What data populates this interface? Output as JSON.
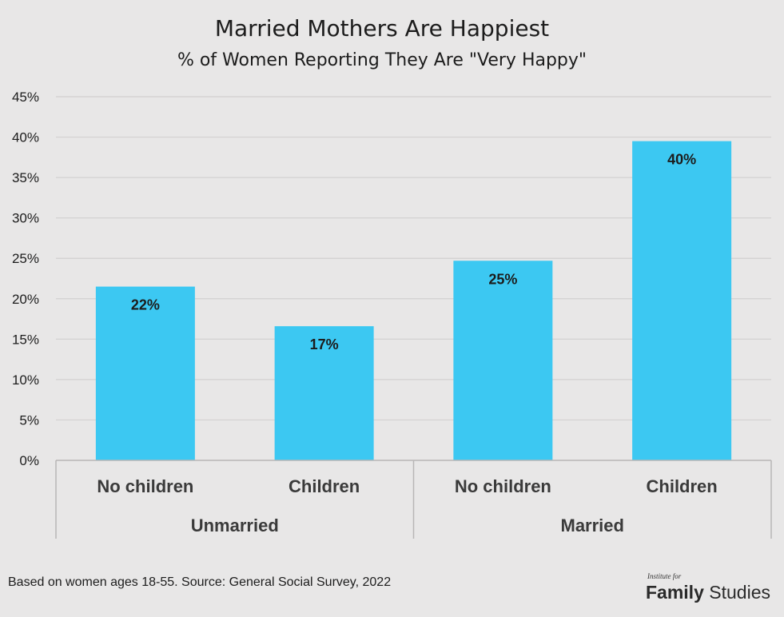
{
  "chart_data": {
    "type": "bar",
    "title": "Married Mothers Are Happiest",
    "subtitle": "% of Women Reporting They Are \"Very Happy\"",
    "categories": [
      "No children",
      "Children",
      "No children",
      "Children"
    ],
    "groups": [
      {
        "label": "Unmarried",
        "categories": [
          0,
          1
        ]
      },
      {
        "label": "Married",
        "categories": [
          2,
          3
        ]
      }
    ],
    "values": [
      21.5,
      16.6,
      24.7,
      39.5
    ],
    "data_labels": [
      "22%",
      "17%",
      "25%",
      "40%"
    ],
    "yticks": [
      "0%",
      "5%",
      "10%",
      "15%",
      "20%",
      "25%",
      "30%",
      "35%",
      "40%",
      "45%"
    ],
    "ylim": [
      0,
      45
    ],
    "grid": true,
    "legend": "none",
    "bar_color": "#3cc8f2"
  },
  "footer": {
    "source": "Based on women ages 18-55. Source: General Social Survey, 2022",
    "logo_small": "Institute for",
    "logo_bold": "Family",
    "logo_light": "Studies"
  }
}
